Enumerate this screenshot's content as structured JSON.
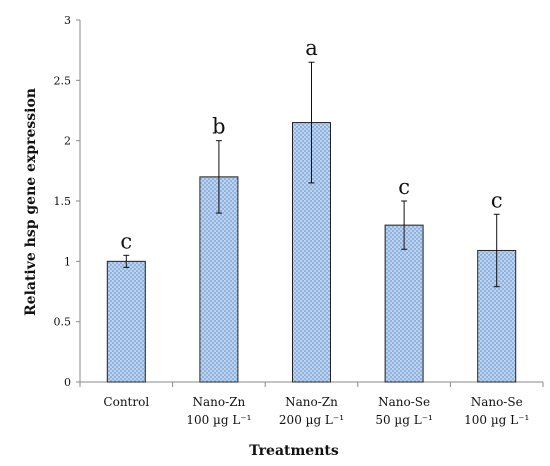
{
  "chart_data": {
    "type": "bar",
    "xlabel": "Treatments",
    "ylabel": "Relative hsp gene expression",
    "ylim": [
      0,
      3
    ],
    "yticks": [
      0,
      0.5,
      1,
      1.5,
      2,
      2.5,
      3
    ],
    "ytick_labels": [
      "0",
      "0.5",
      "1",
      "1.5",
      "2",
      "2.5",
      "3"
    ],
    "categories": [
      {
        "line1": "Control",
        "line2": ""
      },
      {
        "line1": "Nano-Zn",
        "line2": "100 µg L⁻¹"
      },
      {
        "line1": "Nano-Zn",
        "line2": "200 µg L⁻¹"
      },
      {
        "line1": "Nano-Se",
        "line2": "50 µg L⁻¹"
      },
      {
        "line1": "Nano-Se",
        "line2": "100 µg L⁻¹"
      }
    ],
    "values": [
      1.0,
      1.7,
      2.15,
      1.3,
      1.09
    ],
    "error": [
      0.05,
      0.3,
      0.5,
      0.2,
      0.3
    ],
    "significance": [
      "c",
      "b",
      "a",
      "c",
      "c"
    ],
    "bar_color": "#8fb3de",
    "bar_pattern_color": "#ffffff",
    "grid": false
  }
}
